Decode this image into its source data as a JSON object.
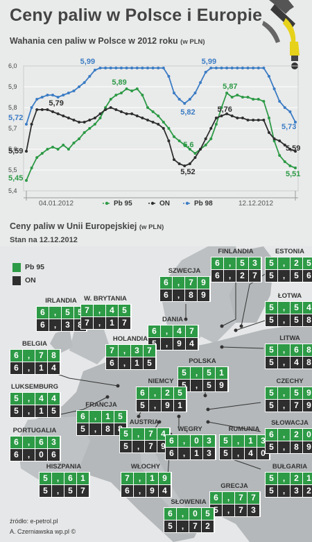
{
  "title": "Ceny paliw w Polsce i Europie",
  "subtitle": "Wahania cen paliw w Polsce w 2012 roku",
  "subtitle_unit": "(w PLN)",
  "chart_data": {
    "type": "line",
    "ylim": [
      5.4,
      6.0
    ],
    "y_ticks": [
      "5,4",
      "5,5",
      "5,6",
      "5,7",
      "5,8",
      "5,9",
      "6,0"
    ],
    "x_labels": [
      "04.01.2012",
      "12.12.2012"
    ],
    "grid": true,
    "legend_position": "bottom",
    "series": [
      {
        "name": "Pb 95",
        "color": "#2d9a46",
        "values": [
          5.45,
          5.51,
          5.56,
          5.58,
          5.6,
          5.61,
          5.6,
          5.62,
          5.6,
          5.63,
          5.65,
          5.68,
          5.7,
          5.72,
          5.75,
          5.8,
          5.84,
          5.86,
          5.87,
          5.89,
          5.88,
          5.89,
          5.86,
          5.8,
          5.78,
          5.76,
          5.73,
          5.7,
          5.66,
          5.64,
          5.62,
          5.6,
          5.58,
          5.6,
          5.62,
          5.65,
          5.72,
          5.8,
          5.87,
          5.85,
          5.86,
          5.85,
          5.85,
          5.84,
          5.84,
          5.83,
          5.75,
          5.64,
          5.57,
          5.54,
          5.52,
          5.51
        ]
      },
      {
        "name": "ON",
        "color": "#2e2e2e",
        "values": [
          5.59,
          5.72,
          5.79,
          5.79,
          5.79,
          5.78,
          5.77,
          5.76,
          5.75,
          5.74,
          5.73,
          5.73,
          5.74,
          5.75,
          5.77,
          5.79,
          5.8,
          5.79,
          5.78,
          5.77,
          5.77,
          5.76,
          5.75,
          5.74,
          5.73,
          5.72,
          5.7,
          5.64,
          5.55,
          5.53,
          5.52,
          5.53,
          5.56,
          5.6,
          5.65,
          5.7,
          5.75,
          5.76,
          5.77,
          5.76,
          5.75,
          5.75,
          5.74,
          5.74,
          5.74,
          5.74,
          5.68,
          5.65,
          5.64,
          5.62,
          5.6,
          5.59
        ]
      },
      {
        "name": "Pb 98",
        "color": "#3b7cc4",
        "values": [
          5.72,
          5.8,
          5.84,
          5.85,
          5.86,
          5.86,
          5.85,
          5.86,
          5.87,
          5.88,
          5.9,
          5.92,
          5.95,
          5.98,
          5.99,
          5.99,
          5.99,
          5.99,
          5.99,
          5.99,
          5.99,
          5.99,
          5.99,
          5.99,
          5.99,
          5.99,
          5.99,
          5.95,
          5.87,
          5.84,
          5.82,
          5.84,
          5.87,
          5.92,
          5.97,
          5.99,
          5.99,
          5.99,
          5.99,
          5.99,
          5.99,
          5.99,
          5.99,
          5.99,
          5.99,
          5.99,
          5.95,
          5.89,
          5.83,
          5.8,
          5.78,
          5.73
        ]
      }
    ],
    "annotations": [
      {
        "text": "5,45",
        "x": 0,
        "y": 5.45,
        "series": "Pb 95"
      },
      {
        "text": "5,59",
        "x": 0,
        "y": 5.59,
        "series": "ON"
      },
      {
        "text": "5,72",
        "x": 0,
        "y": 5.72,
        "series": "Pb 98"
      },
      {
        "text": "5,79",
        "x": 4,
        "y": 5.79,
        "series": "ON"
      },
      {
        "text": "5,99",
        "x": 11,
        "y": 5.99,
        "series": "Pb 98"
      },
      {
        "text": "5,89",
        "x": 17,
        "y": 5.89,
        "series": "Pb 95"
      },
      {
        "text": "5,82",
        "x": 30,
        "y": 5.82,
        "series": "Pb 98"
      },
      {
        "text": "5,6",
        "x": 30,
        "y": 5.6,
        "series": "Pb 95"
      },
      {
        "text": "5,52",
        "x": 30,
        "y": 5.52,
        "series": "ON"
      },
      {
        "text": "5,99",
        "x": 34,
        "y": 5.99,
        "series": "Pb 98"
      },
      {
        "text": "5,87",
        "x": 38,
        "y": 5.87,
        "series": "Pb 95"
      },
      {
        "text": "5,76",
        "x": 37,
        "y": 5.76,
        "series": "ON"
      },
      {
        "text": "5,73",
        "x": 51,
        "y": 5.73,
        "series": "Pb 98"
      },
      {
        "text": "5,59",
        "x": 51,
        "y": 5.59,
        "series": "ON"
      },
      {
        "text": "5,51",
        "x": 51,
        "y": 5.51,
        "series": "Pb 95"
      }
    ]
  },
  "legend": {
    "pb95_label": "Pb 95",
    "on_label": "ON",
    "pb98_label": "Pb 98"
  },
  "eu": {
    "title": "Ceny paliw w Unii Europejskiej",
    "title_unit": "(w PLN)",
    "date": "Stan na 12.12.2012",
    "legend": {
      "pb95": "Pb 95",
      "on": "ON"
    },
    "countries": [
      {
        "name": "FINLANDIA",
        "pb95": "6,53",
        "on": "6,27"
      },
      {
        "name": "ESTONIA",
        "pb95": "5,25",
        "on": "5,56"
      },
      {
        "name": "SZWECJA",
        "pb95": "6,79",
        "on": "6,89"
      },
      {
        "name": "IRLANDIA",
        "pb95": "6,55",
        "on": "6,38"
      },
      {
        "name": "W. BRYTANIA",
        "pb95": "7,45",
        "on": "7,17"
      },
      {
        "name": "ŁOTWA",
        "pb95": "5,54",
        "on": "5,58"
      },
      {
        "name": "DANIA",
        "pb95": "6,47",
        "on": "5,94"
      },
      {
        "name": "BELGIA",
        "pb95": "6,78",
        "on": "6,14"
      },
      {
        "name": "HOLANDIA",
        "pb95": "7,37",
        "on": "6,15"
      },
      {
        "name": "LITWA",
        "pb95": "5,68",
        "on": "5,48"
      },
      {
        "name": "POLSKA",
        "pb95": "5,51",
        "on": "5,59"
      },
      {
        "name": "LUKSEMBURG",
        "pb95": "5,44",
        "on": "5,15"
      },
      {
        "name": "NIEMCY",
        "pb95": "6,25",
        "on": "5,91"
      },
      {
        "name": "CZECHY",
        "pb95": "5,59",
        "on": "5,79"
      },
      {
        "name": "FRANCJA",
        "pb95": "6,15",
        "on": "5,88"
      },
      {
        "name": "PORTUGALIA",
        "pb95": "6,63",
        "on": "6,06"
      },
      {
        "name": "AUSTRIA",
        "pb95": "5,74",
        "on": "5,79"
      },
      {
        "name": "WĘGRY",
        "pb95": "6,03",
        "on": "6,13"
      },
      {
        "name": "RUMUNIA",
        "pb95": "5,13",
        "on": "5,40"
      },
      {
        "name": "SŁOWACJA",
        "pb95": "6,20",
        "on": "5,89"
      },
      {
        "name": "HISZPANIA",
        "pb95": "5,61",
        "on": "5,57"
      },
      {
        "name": "WŁOCHY",
        "pb95": "7,19",
        "on": "6,94"
      },
      {
        "name": "BUŁGARIA",
        "pb95": "5,21",
        "on": "5,32"
      },
      {
        "name": "GRECJA",
        "pb95": "6,77",
        "on": "5,73"
      },
      {
        "name": "SŁOWENIA",
        "pb95": "6,05",
        "on": "5,72"
      }
    ]
  },
  "source": "źródło: e-petrol.pl",
  "author": "A. Czerniawska wp.pl ©",
  "icon": "fuel-nozzle-icon"
}
